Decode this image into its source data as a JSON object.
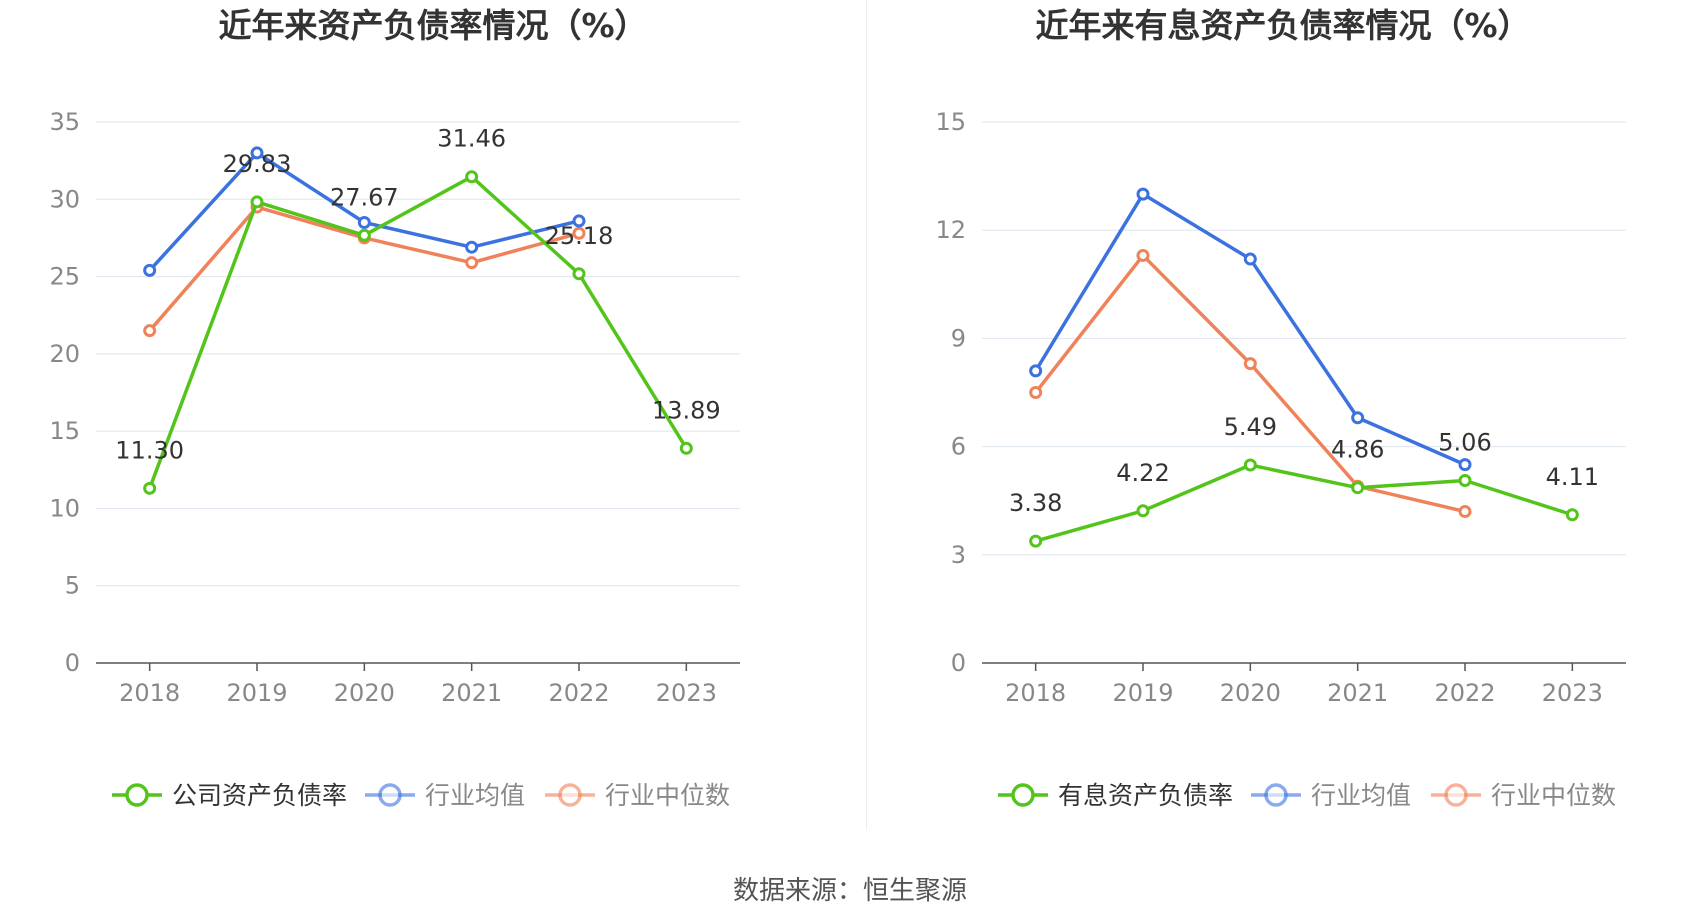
{
  "source": "数据来源：恒生聚源",
  "colors": {
    "company": "#52c41a",
    "average": "#3b72e0",
    "median": "#f0825a"
  },
  "chart_data": [
    {
      "type": "line",
      "title": "近年来资产负债率情况（%）",
      "categories": [
        "2018",
        "2019",
        "2020",
        "2021",
        "2022",
        "2023"
      ],
      "ylim": [
        0,
        35
      ],
      "yticks": [
        "0",
        "5",
        "10",
        "15",
        "20",
        "25",
        "30",
        "35"
      ],
      "grid": true,
      "legend_position": "bottom",
      "series": [
        {
          "name": "公司资产负债率",
          "values": [
            11.3,
            29.83,
            27.67,
            31.46,
            25.18,
            13.89
          ],
          "labels": [
            "11.30",
            "29.83",
            "27.67",
            "31.46",
            "25.18",
            "13.89"
          ]
        },
        {
          "name": "行业均值",
          "values": [
            25.4,
            33.0,
            28.5,
            26.9,
            28.6,
            null
          ]
        },
        {
          "name": "行业中位数",
          "values": [
            21.5,
            29.5,
            27.5,
            25.9,
            27.8,
            null
          ]
        }
      ]
    },
    {
      "type": "line",
      "title": "近年来有息资产负债率情况（%）",
      "categories": [
        "2018",
        "2019",
        "2020",
        "2021",
        "2022",
        "2023"
      ],
      "ylim": [
        0,
        15
      ],
      "yticks": [
        "0",
        "3",
        "6",
        "9",
        "12",
        "15"
      ],
      "grid": true,
      "legend_position": "bottom",
      "series": [
        {
          "name": "有息资产负债率",
          "values": [
            3.38,
            4.22,
            5.49,
            4.86,
            5.06,
            4.11
          ],
          "labels": [
            "3.38",
            "4.22",
            "5.49",
            "4.86",
            "5.06",
            "4.11"
          ]
        },
        {
          "name": "行业均值",
          "values": [
            8.1,
            13.0,
            11.2,
            6.8,
            5.5,
            null
          ]
        },
        {
          "name": "行业中位数",
          "values": [
            7.5,
            11.3,
            8.3,
            4.9,
            4.2,
            null
          ]
        }
      ]
    }
  ]
}
